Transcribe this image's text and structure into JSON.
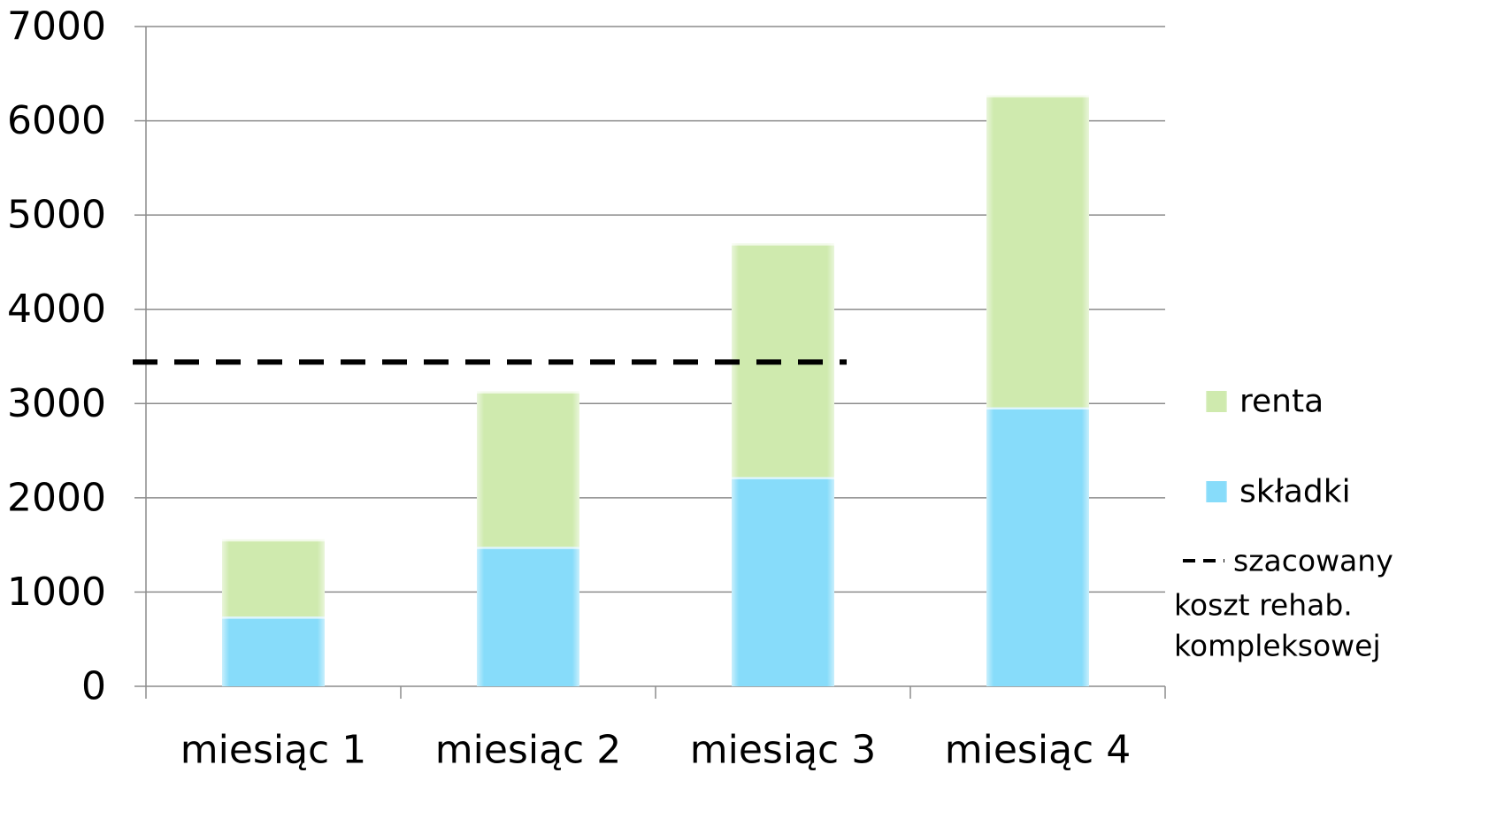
{
  "chart_data": {
    "type": "bar",
    "stacked": true,
    "categories": [
      "miesiąc 1",
      "miesiąc 2",
      "miesiąc 3",
      "miesiąc 4"
    ],
    "series": [
      {
        "name": "składki",
        "values": [
          740,
          1480,
          2220,
          2960
        ],
        "color": "#87dcfa"
      },
      {
        "name": "renta",
        "values": [
          820,
          1650,
          2480,
          3310
        ],
        "color": "#cfeaae"
      }
    ],
    "reference_line": {
      "value": 3440,
      "style": "dashed",
      "color": "#000000",
      "legend_lines": [
        "szacowany",
        "koszt rehab.",
        "kompleksowej"
      ]
    },
    "ylim": [
      0,
      7000
    ],
    "yticks": [
      "0",
      "1000",
      "2000",
      "3000",
      "4000",
      "5000",
      "6000",
      "7000"
    ],
    "grid": true,
    "legend_position": "right"
  }
}
